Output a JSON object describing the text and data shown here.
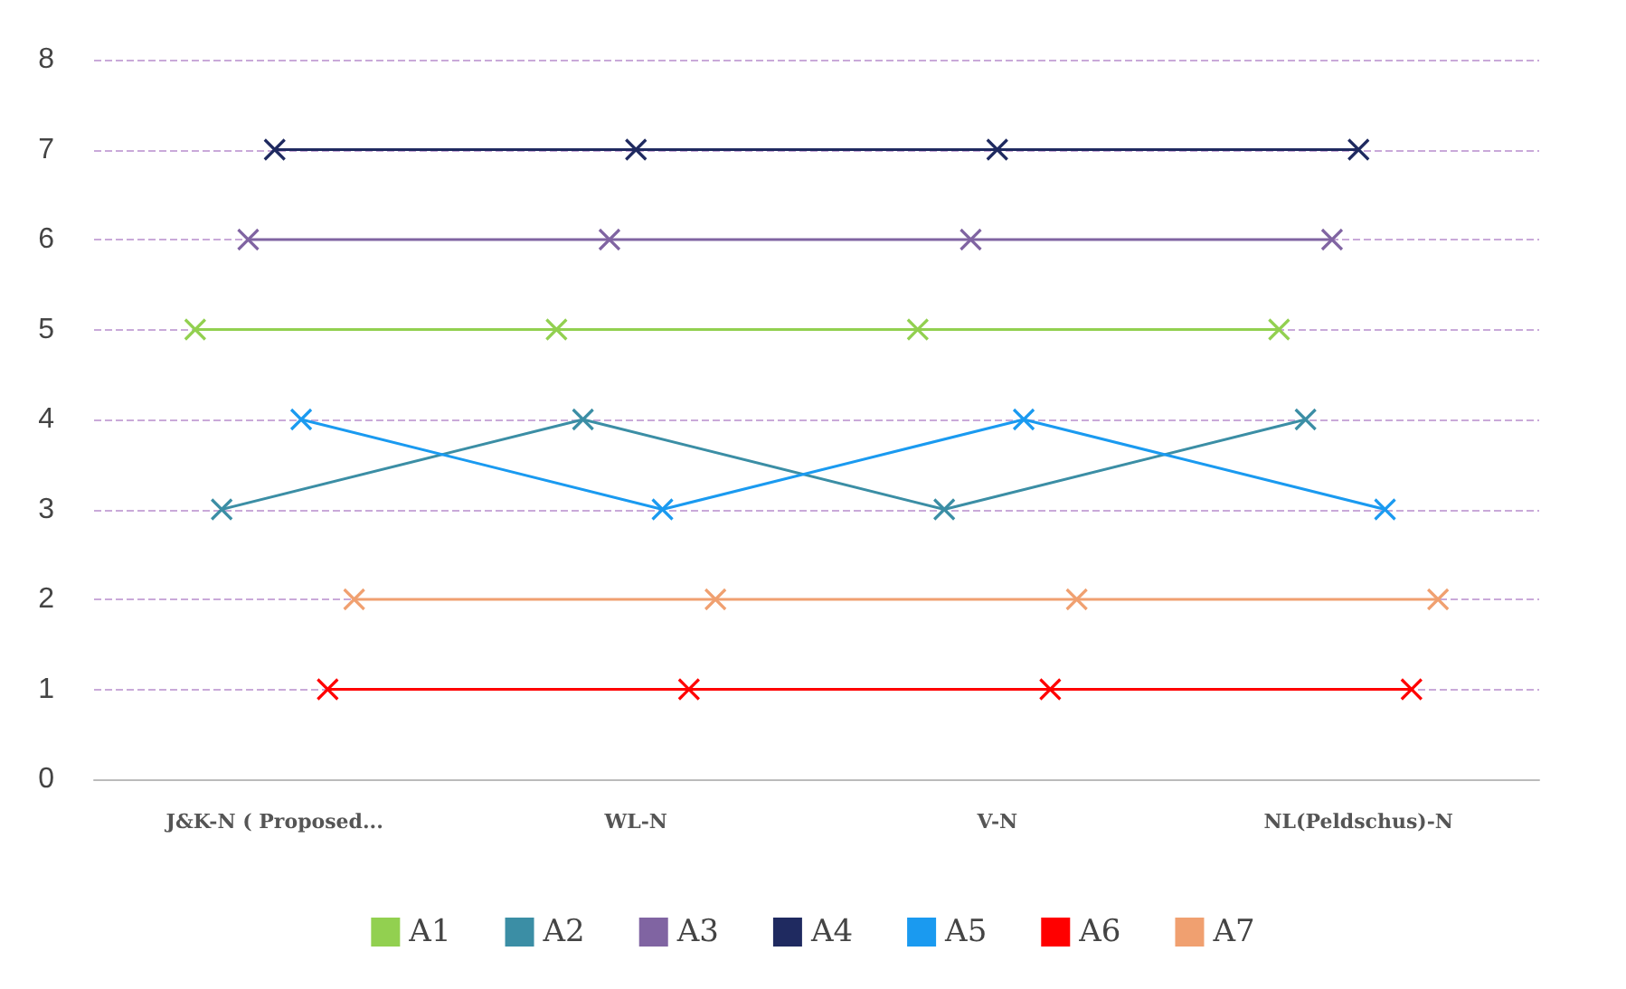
{
  "chart_data": {
    "type": "line",
    "categories": [
      "J&K-N ( Proposed...",
      "WL-N",
      "V-N",
      "NL(Peldschus)-N"
    ],
    "series": [
      {
        "name": "A1",
        "color": "#92d050",
        "values": [
          5,
          5,
          5,
          5
        ]
      },
      {
        "name": "A2",
        "color": "#3b8ea5",
        "values": [
          3,
          4,
          3,
          4
        ]
      },
      {
        "name": "A3",
        "color": "#8064a2",
        "values": [
          6,
          6,
          6,
          6
        ]
      },
      {
        "name": "A4",
        "color": "#1f2a60",
        "values": [
          7,
          7,
          7,
          7
        ]
      },
      {
        "name": "A5",
        "color": "#1a9af0",
        "values": [
          4,
          3,
          4,
          3
        ]
      },
      {
        "name": "A6",
        "color": "#ff0000",
        "values": [
          1,
          1,
          1,
          1
        ]
      },
      {
        "name": "A7",
        "color": "#f0a070",
        "values": [
          2,
          2,
          2,
          2
        ]
      }
    ],
    "ylim": [
      0,
      8
    ],
    "yticks": [
      0,
      1,
      2,
      3,
      4,
      5,
      6,
      7,
      8
    ],
    "grid": "y",
    "legend": "bottom",
    "marker": "cross",
    "line_style": "solid"
  }
}
